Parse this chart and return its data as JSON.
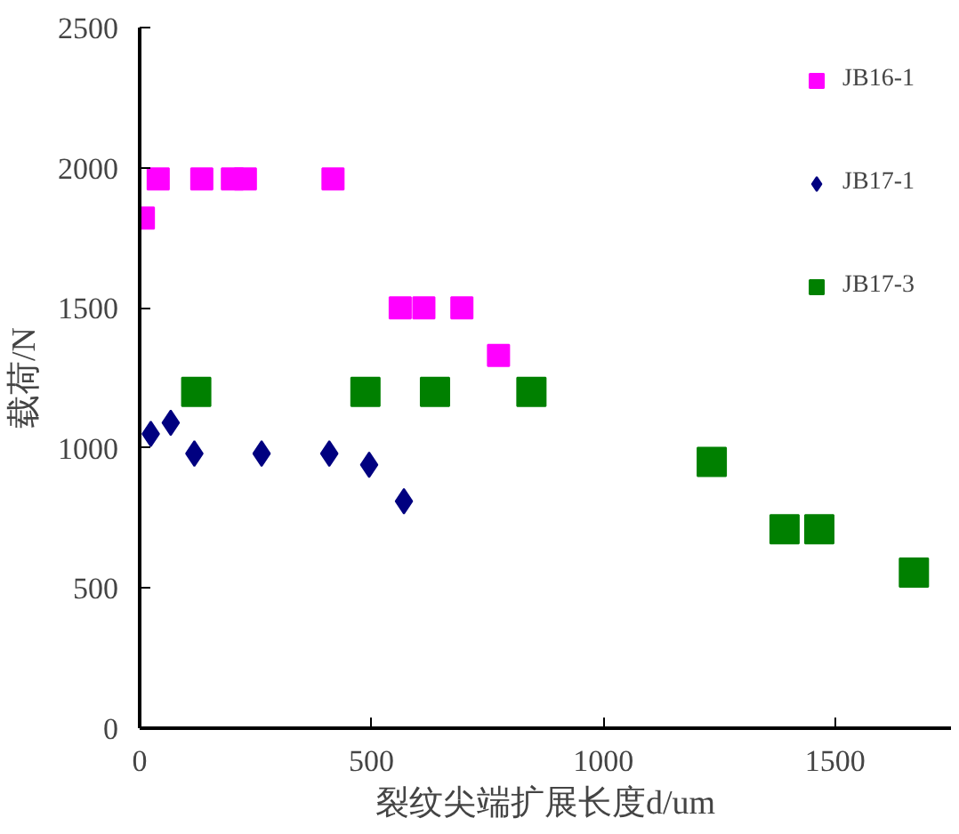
{
  "chart_data": {
    "type": "scatter",
    "xlabel": "裂纹尖端扩展长度d/um",
    "ylabel": "载荷/N",
    "xlim": [
      0,
      1750
    ],
    "ylim": [
      0,
      2500
    ],
    "xticks": [
      0,
      500,
      1000,
      1500
    ],
    "yticks": [
      0,
      500,
      1000,
      1500,
      2000,
      2500
    ],
    "grid": false,
    "legend": "top right",
    "series": [
      {
        "name": "JB16-1",
        "color": "#ff00ff",
        "marker": "square",
        "x": [
          8,
          40,
          134,
          200,
          228,
          417,
          562,
          613,
          695,
          774
        ],
        "values": [
          1820,
          1960,
          1960,
          1960,
          1960,
          1960,
          1500,
          1500,
          1500,
          1330
        ]
      },
      {
        "name": "JB17-1",
        "color": "#000080",
        "marker": "diamond",
        "x": [
          24,
          67,
          118,
          263,
          409,
          495,
          570
        ],
        "values": [
          1050,
          1090,
          980,
          980,
          980,
          940,
          810
        ]
      },
      {
        "name": "JB17-3",
        "color": "#008000",
        "marker": "square",
        "x": [
          122,
          487,
          637,
          845,
          1234,
          1391,
          1466,
          1670
        ],
        "values": [
          1200,
          1200,
          1200,
          1200,
          950,
          710,
          710,
          555
        ]
      }
    ]
  }
}
